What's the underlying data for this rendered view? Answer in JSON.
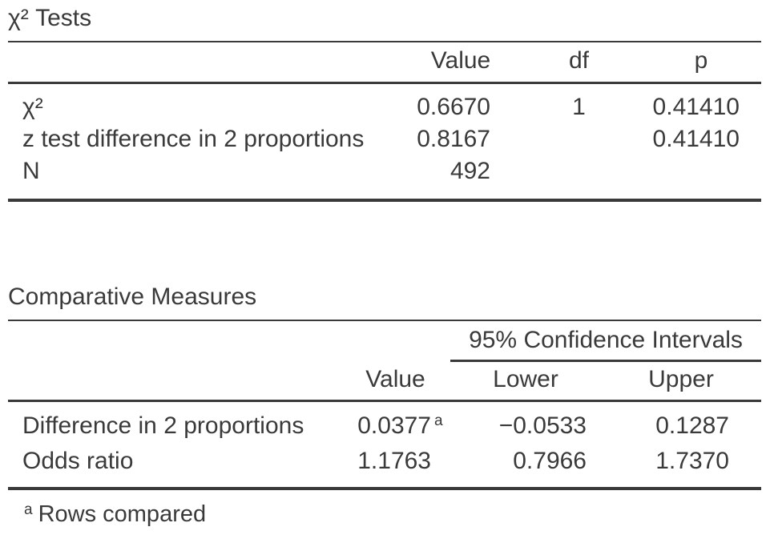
{
  "page": {
    "background": "#ffffff",
    "text_color": "#3a3a3a",
    "rule_color": "#3a3a3a"
  },
  "chart_data": [
    {
      "type": "table",
      "title": "χ² Tests",
      "columns": [
        "",
        "Value",
        "df",
        "p"
      ],
      "rows": [
        {
          "label": "χ²",
          "value": "0.6670",
          "df": "1",
          "p": "0.41410"
        },
        {
          "label": "z test difference in 2 proportions",
          "value": "0.8167",
          "df": "",
          "p": "0.41410"
        },
        {
          "label": "N",
          "value": "492",
          "df": "",
          "p": ""
        }
      ],
      "layout_hints": {
        "numeric_alignment": "right",
        "header_alignment": "center"
      }
    },
    {
      "type": "table",
      "title": "Comparative Measures",
      "column_group": "95% Confidence Intervals",
      "columns": [
        "",
        "Value",
        "Lower",
        "Upper"
      ],
      "rows": [
        {
          "label": "Difference in 2 proportions",
          "value": "0.0377",
          "value_sup": "a",
          "lower": "−0.0533",
          "upper": "0.1287"
        },
        {
          "label": "Odds ratio",
          "value": "1.1763",
          "value_sup": "",
          "lower": "0.7966",
          "upper": "1.7370"
        }
      ],
      "footnote_marker": "a",
      "footnote_text": "Rows compared",
      "layout_hints": {
        "numeric_alignment": "right",
        "header_alignment": "center",
        "group_spans": [
          "Lower",
          "Upper"
        ]
      }
    }
  ]
}
